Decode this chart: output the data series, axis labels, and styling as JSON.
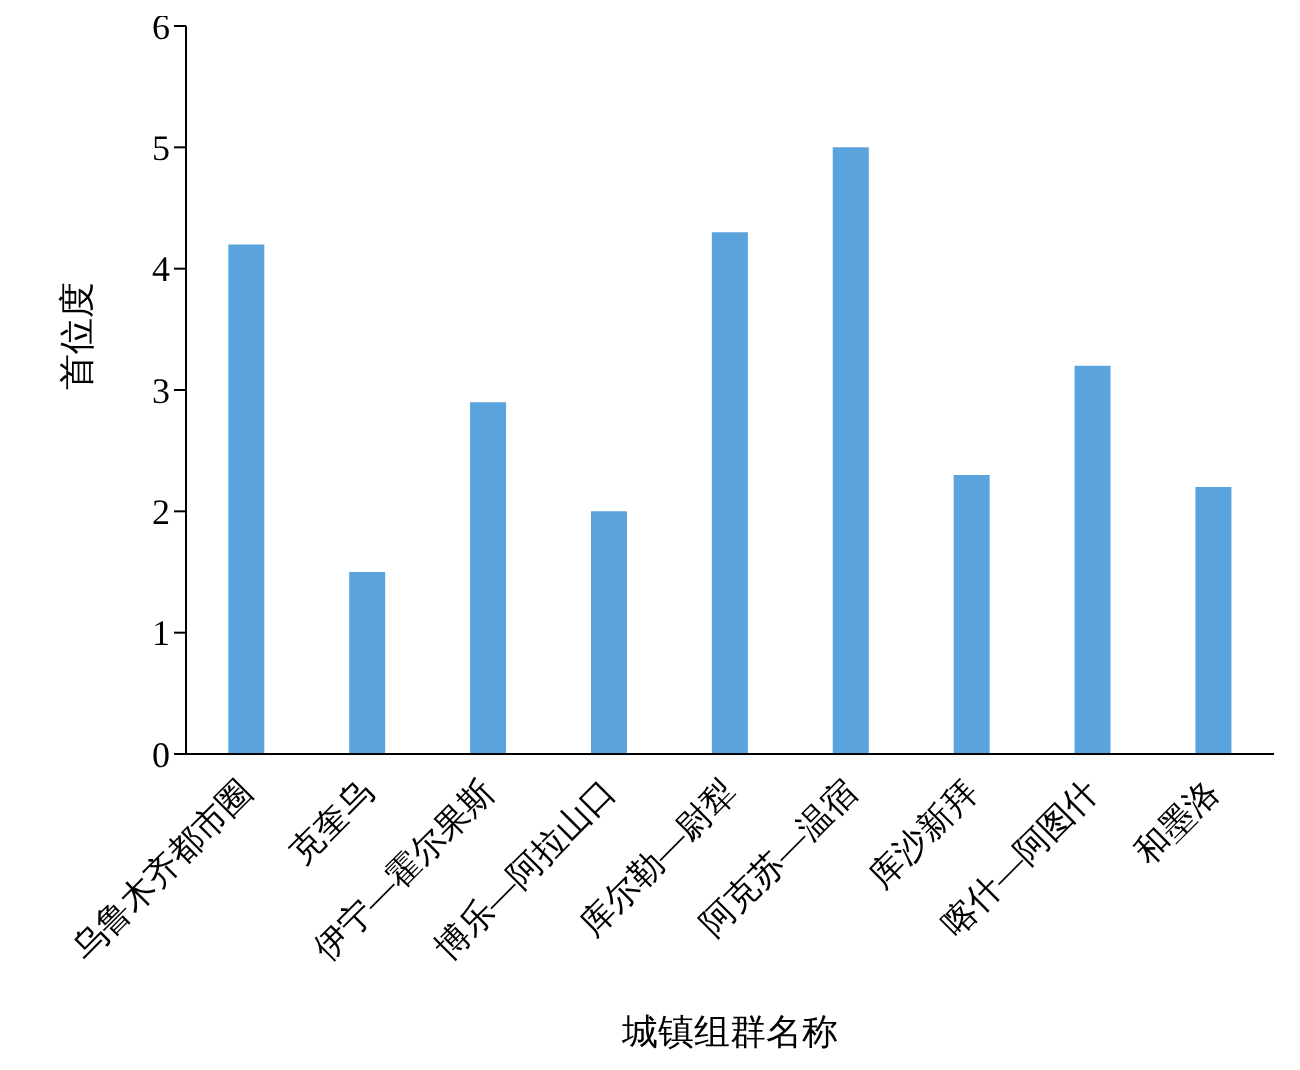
{
  "chart_data": {
    "type": "bar",
    "xlabel": "城镇组群名称",
    "ylabel": "首位度",
    "categories": [
      "乌鲁木齐都市圈",
      "克奎乌",
      "伊宁—霍尔果斯",
      "博乐—阿拉山口",
      "库尔勒—尉犁",
      "阿克苏—温宿",
      "库沙新拜",
      "喀什—阿图什",
      "和墨洛"
    ],
    "values": [
      4.2,
      1.5,
      2.9,
      2.0,
      4.3,
      5.0,
      2.3,
      3.2,
      2.2
    ],
    "color": "#5ba3dc",
    "ylim": [
      0,
      6
    ],
    "yticks": [
      0,
      1,
      2,
      3,
      4,
      5,
      6
    ],
    "grid": false,
    "legend": false
  }
}
